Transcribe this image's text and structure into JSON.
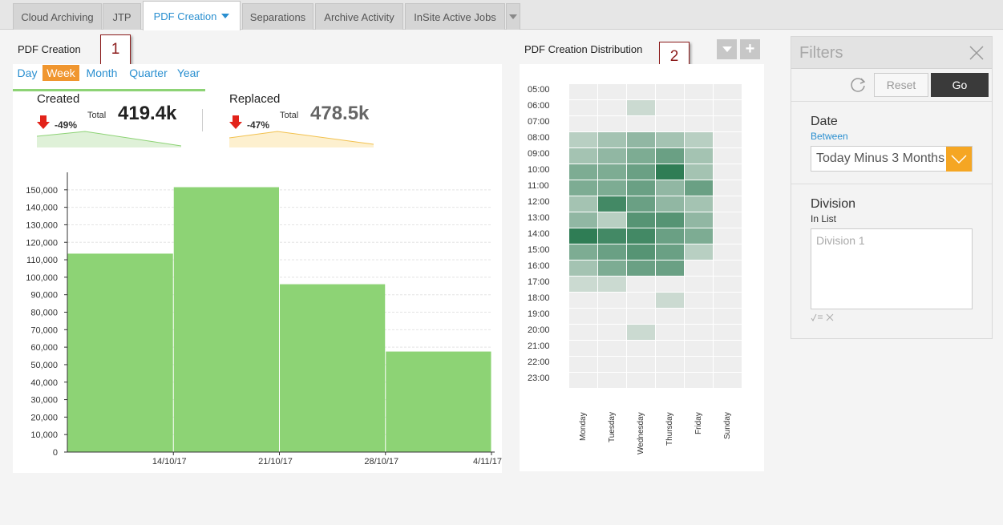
{
  "tabs": [
    {
      "label": "Cloud Archiving",
      "active": false
    },
    {
      "label": "JTP",
      "active": false
    },
    {
      "label": "PDF Creation",
      "active": true
    },
    {
      "label": "Separations",
      "active": false
    },
    {
      "label": "Archive Activity",
      "active": false
    },
    {
      "label": "InSite Active Jobs",
      "active": false
    }
  ],
  "panel1": {
    "title": "PDF Creation",
    "callout": "1",
    "periods": [
      "Day",
      "Week",
      "Month",
      "Quarter",
      "Year"
    ],
    "active_period": "Week",
    "created": {
      "label": "Created",
      "change": "-49%",
      "total_label": "Total",
      "value": "419.4k"
    },
    "replaced": {
      "label": "Replaced",
      "change": "-47%",
      "total_label": "Total",
      "value": "478.5k"
    }
  },
  "panel2": {
    "title": "PDF Creation Distribution",
    "callout": "2",
    "hours": [
      "05:00",
      "06:00",
      "07:00",
      "08:00",
      "09:00",
      "10:00",
      "11:00",
      "12:00",
      "13:00",
      "14:00",
      "15:00",
      "16:00",
      "17:00",
      "18:00",
      "19:00",
      "20:00",
      "21:00",
      "22:00",
      "23:00"
    ],
    "days": [
      "Monday",
      "Tuesday",
      "Wednesday",
      "Thursday",
      "Friday",
      "Sunday"
    ],
    "intensity": [
      [
        0,
        0,
        0,
        0,
        0,
        0
      ],
      [
        0,
        0,
        1,
        0,
        0,
        0
      ],
      [
        0,
        0,
        0,
        0,
        0,
        0
      ],
      [
        2,
        3,
        4,
        3,
        2,
        0
      ],
      [
        3,
        4,
        5,
        6,
        3,
        0
      ],
      [
        5,
        5,
        6,
        9,
        3,
        0
      ],
      [
        5,
        5,
        6,
        4,
        6,
        0
      ],
      [
        3,
        8,
        6,
        4,
        3,
        0
      ],
      [
        4,
        2,
        7,
        7,
        4,
        0
      ],
      [
        9,
        8,
        8,
        6,
        5,
        0
      ],
      [
        5,
        6,
        7,
        6,
        2,
        0
      ],
      [
        3,
        5,
        6,
        6,
        0,
        0
      ],
      [
        1,
        1,
        0,
        0,
        0,
        0
      ],
      [
        0,
        0,
        0,
        1,
        0,
        0
      ],
      [
        0,
        0,
        0,
        0,
        0,
        0
      ],
      [
        0,
        0,
        1,
        0,
        0,
        0
      ],
      [
        0,
        0,
        0,
        0,
        0,
        0
      ],
      [
        0,
        0,
        0,
        0,
        0,
        0
      ],
      [
        0,
        0,
        0,
        0,
        0,
        0
      ]
    ],
    "colors": {
      "empty": "#eeeeee",
      "low": "#dfe6e1",
      "high": "#2f7d55"
    }
  },
  "chart_data": {
    "type": "bar",
    "categories": [
      "14/10/17",
      "21/10/17",
      "28/10/17",
      "4/11/17"
    ],
    "values": [
      113500,
      151500,
      96000,
      57500
    ],
    "ylim": [
      0,
      160000
    ],
    "yticks": [
      "0",
      "10,000",
      "20,000",
      "30,000",
      "40,000",
      "50,000",
      "60,000",
      "70,000",
      "80,000",
      "90,000",
      "100,000",
      "110,000",
      "120,000",
      "130,000",
      "140,000",
      "150,000"
    ],
    "ytick_values": [
      0,
      10000,
      20000,
      30000,
      40000,
      50000,
      60000,
      70000,
      80000,
      90000,
      100000,
      110000,
      120000,
      130000,
      140000,
      150000
    ],
    "grid": true,
    "color": "#8dd375"
  },
  "filters": {
    "title": "Filters",
    "reset_label": "Reset",
    "go_label": "Go",
    "date": {
      "label": "Date",
      "operator": "Between",
      "value": "Today Minus 3 Months"
    },
    "division": {
      "label": "Division",
      "operator": "In List",
      "placeholder": "Division 1"
    }
  }
}
